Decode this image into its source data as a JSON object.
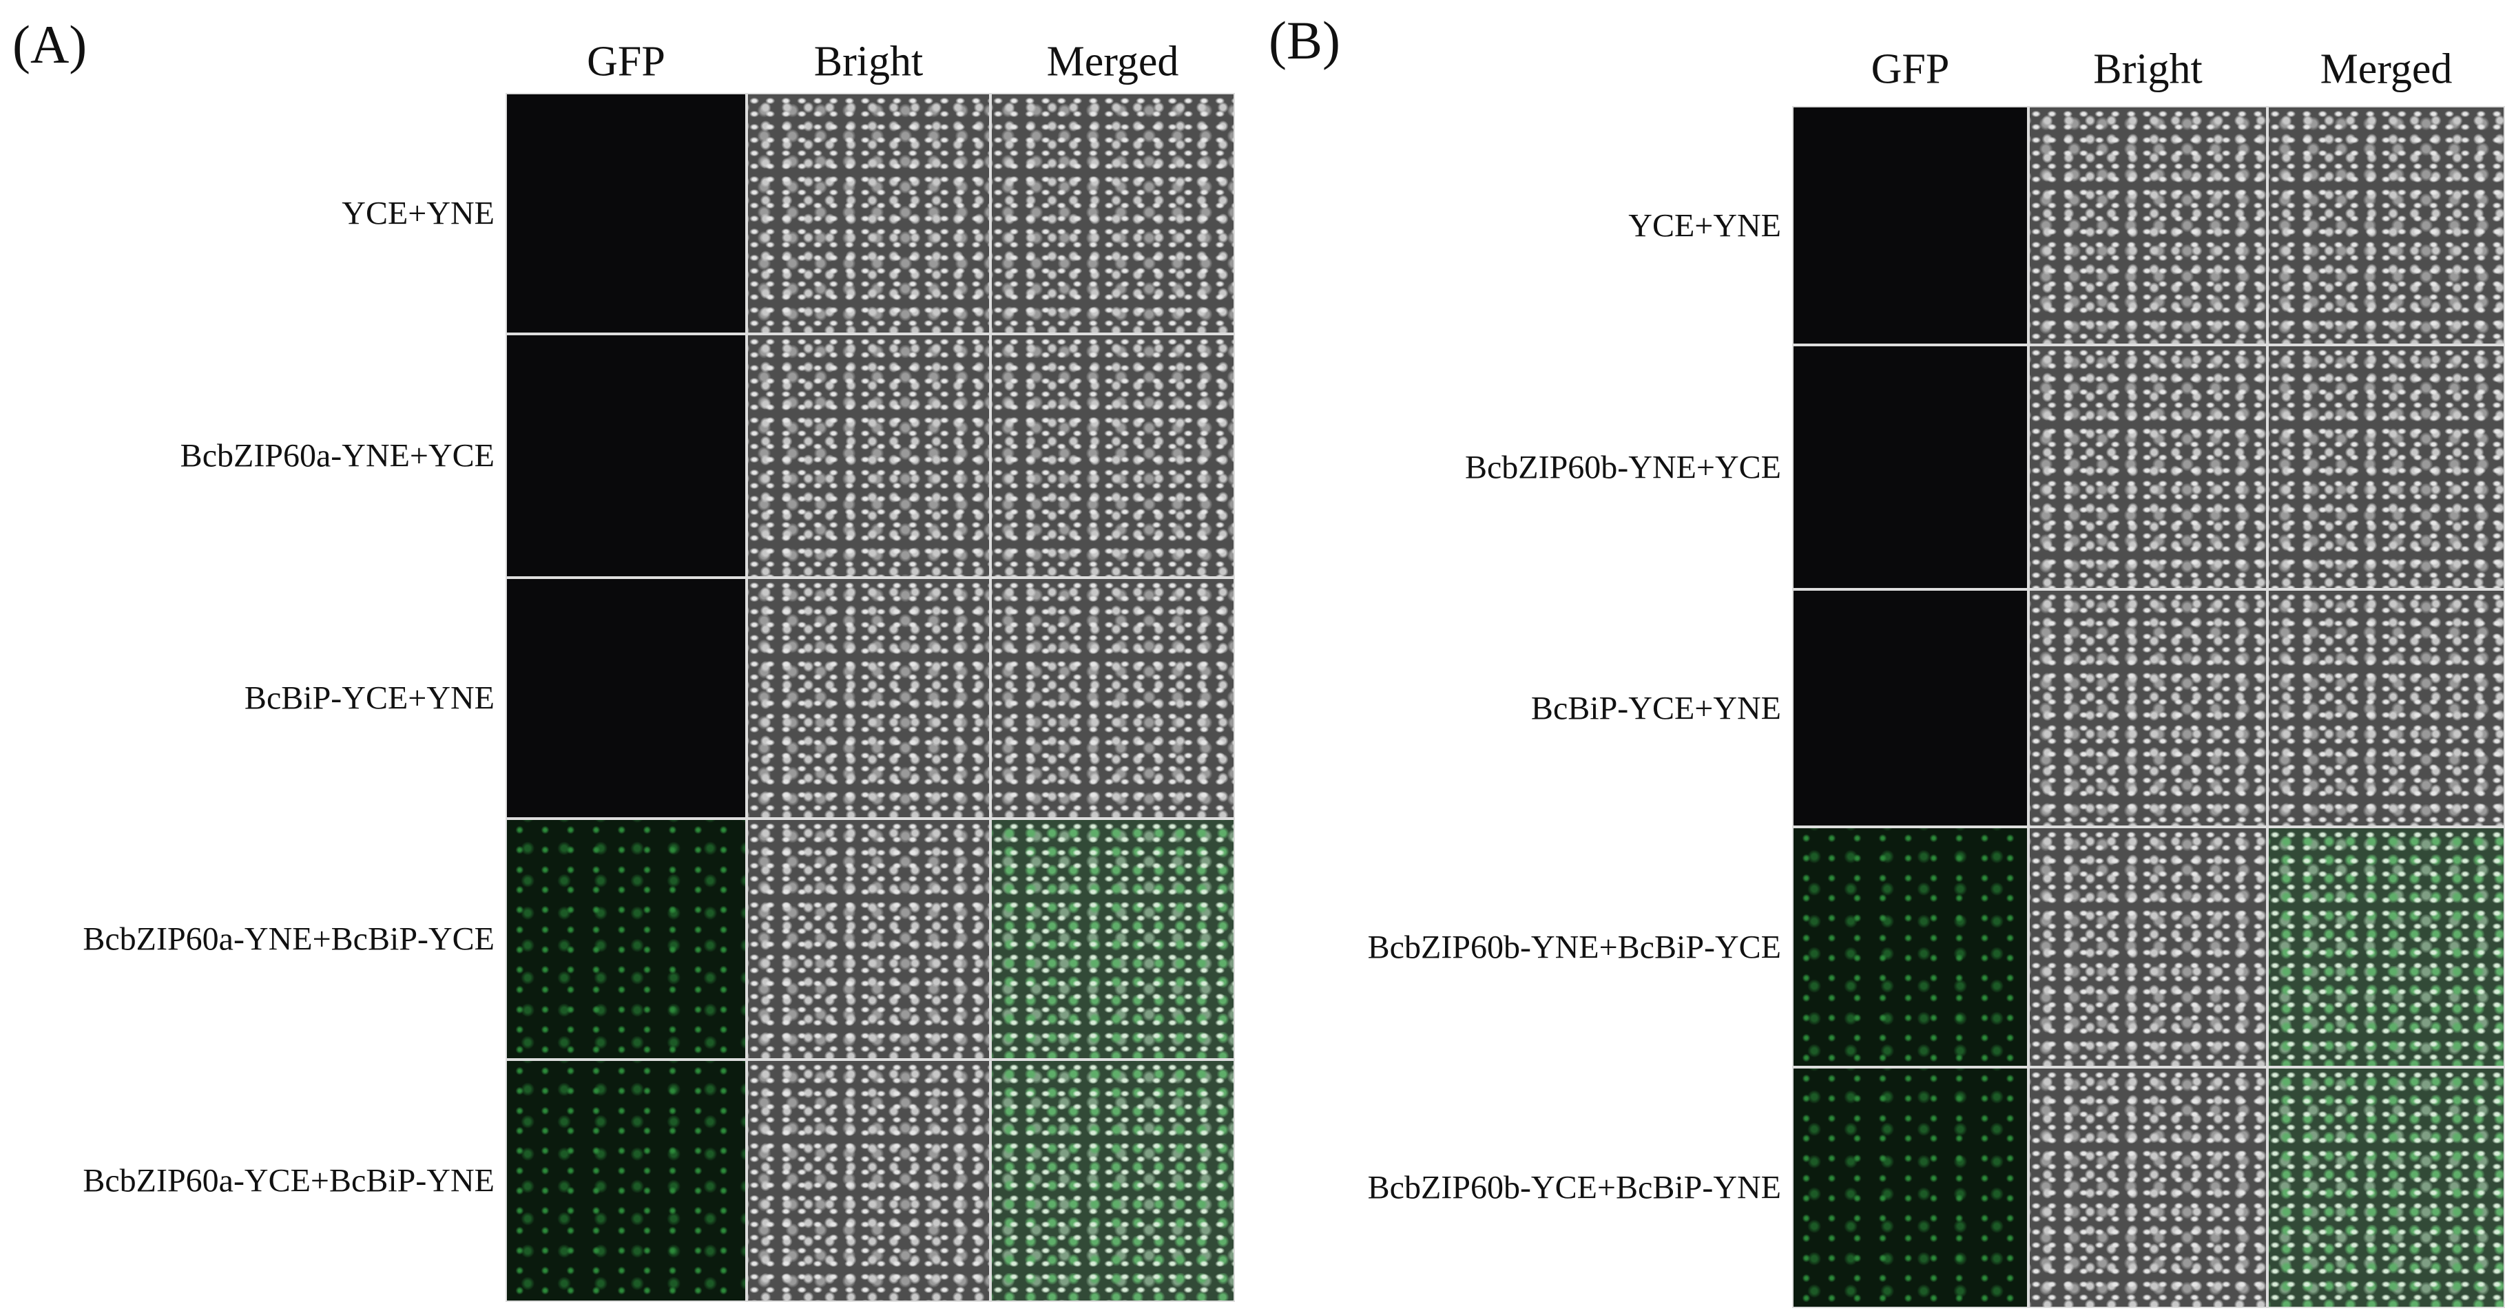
{
  "panels": [
    {
      "label": "(A)",
      "columns": [
        "GFP",
        "Bright",
        "Merged"
      ],
      "rows": [
        "YCE+YNE",
        "BcbZIP60a-YNE+YCE",
        "BcBiP-YCE+YNE",
        "BcbZIP60a-YNE+BcBiP-YCE",
        "BcbZIP60a-YCE+BcBiP-YNE"
      ]
    },
    {
      "label": "(B)",
      "columns": [
        "GFP",
        "Bright",
        "Merged"
      ],
      "rows": [
        "YCE+YNE",
        "BcbZIP60b-YNE+YCE",
        "BcBiP-YCE+YNE",
        "BcbZIP60b-YNE+BcBiP-YCE",
        "BcbZIP60b-YCE+BcBiP-YNE"
      ]
    }
  ]
}
